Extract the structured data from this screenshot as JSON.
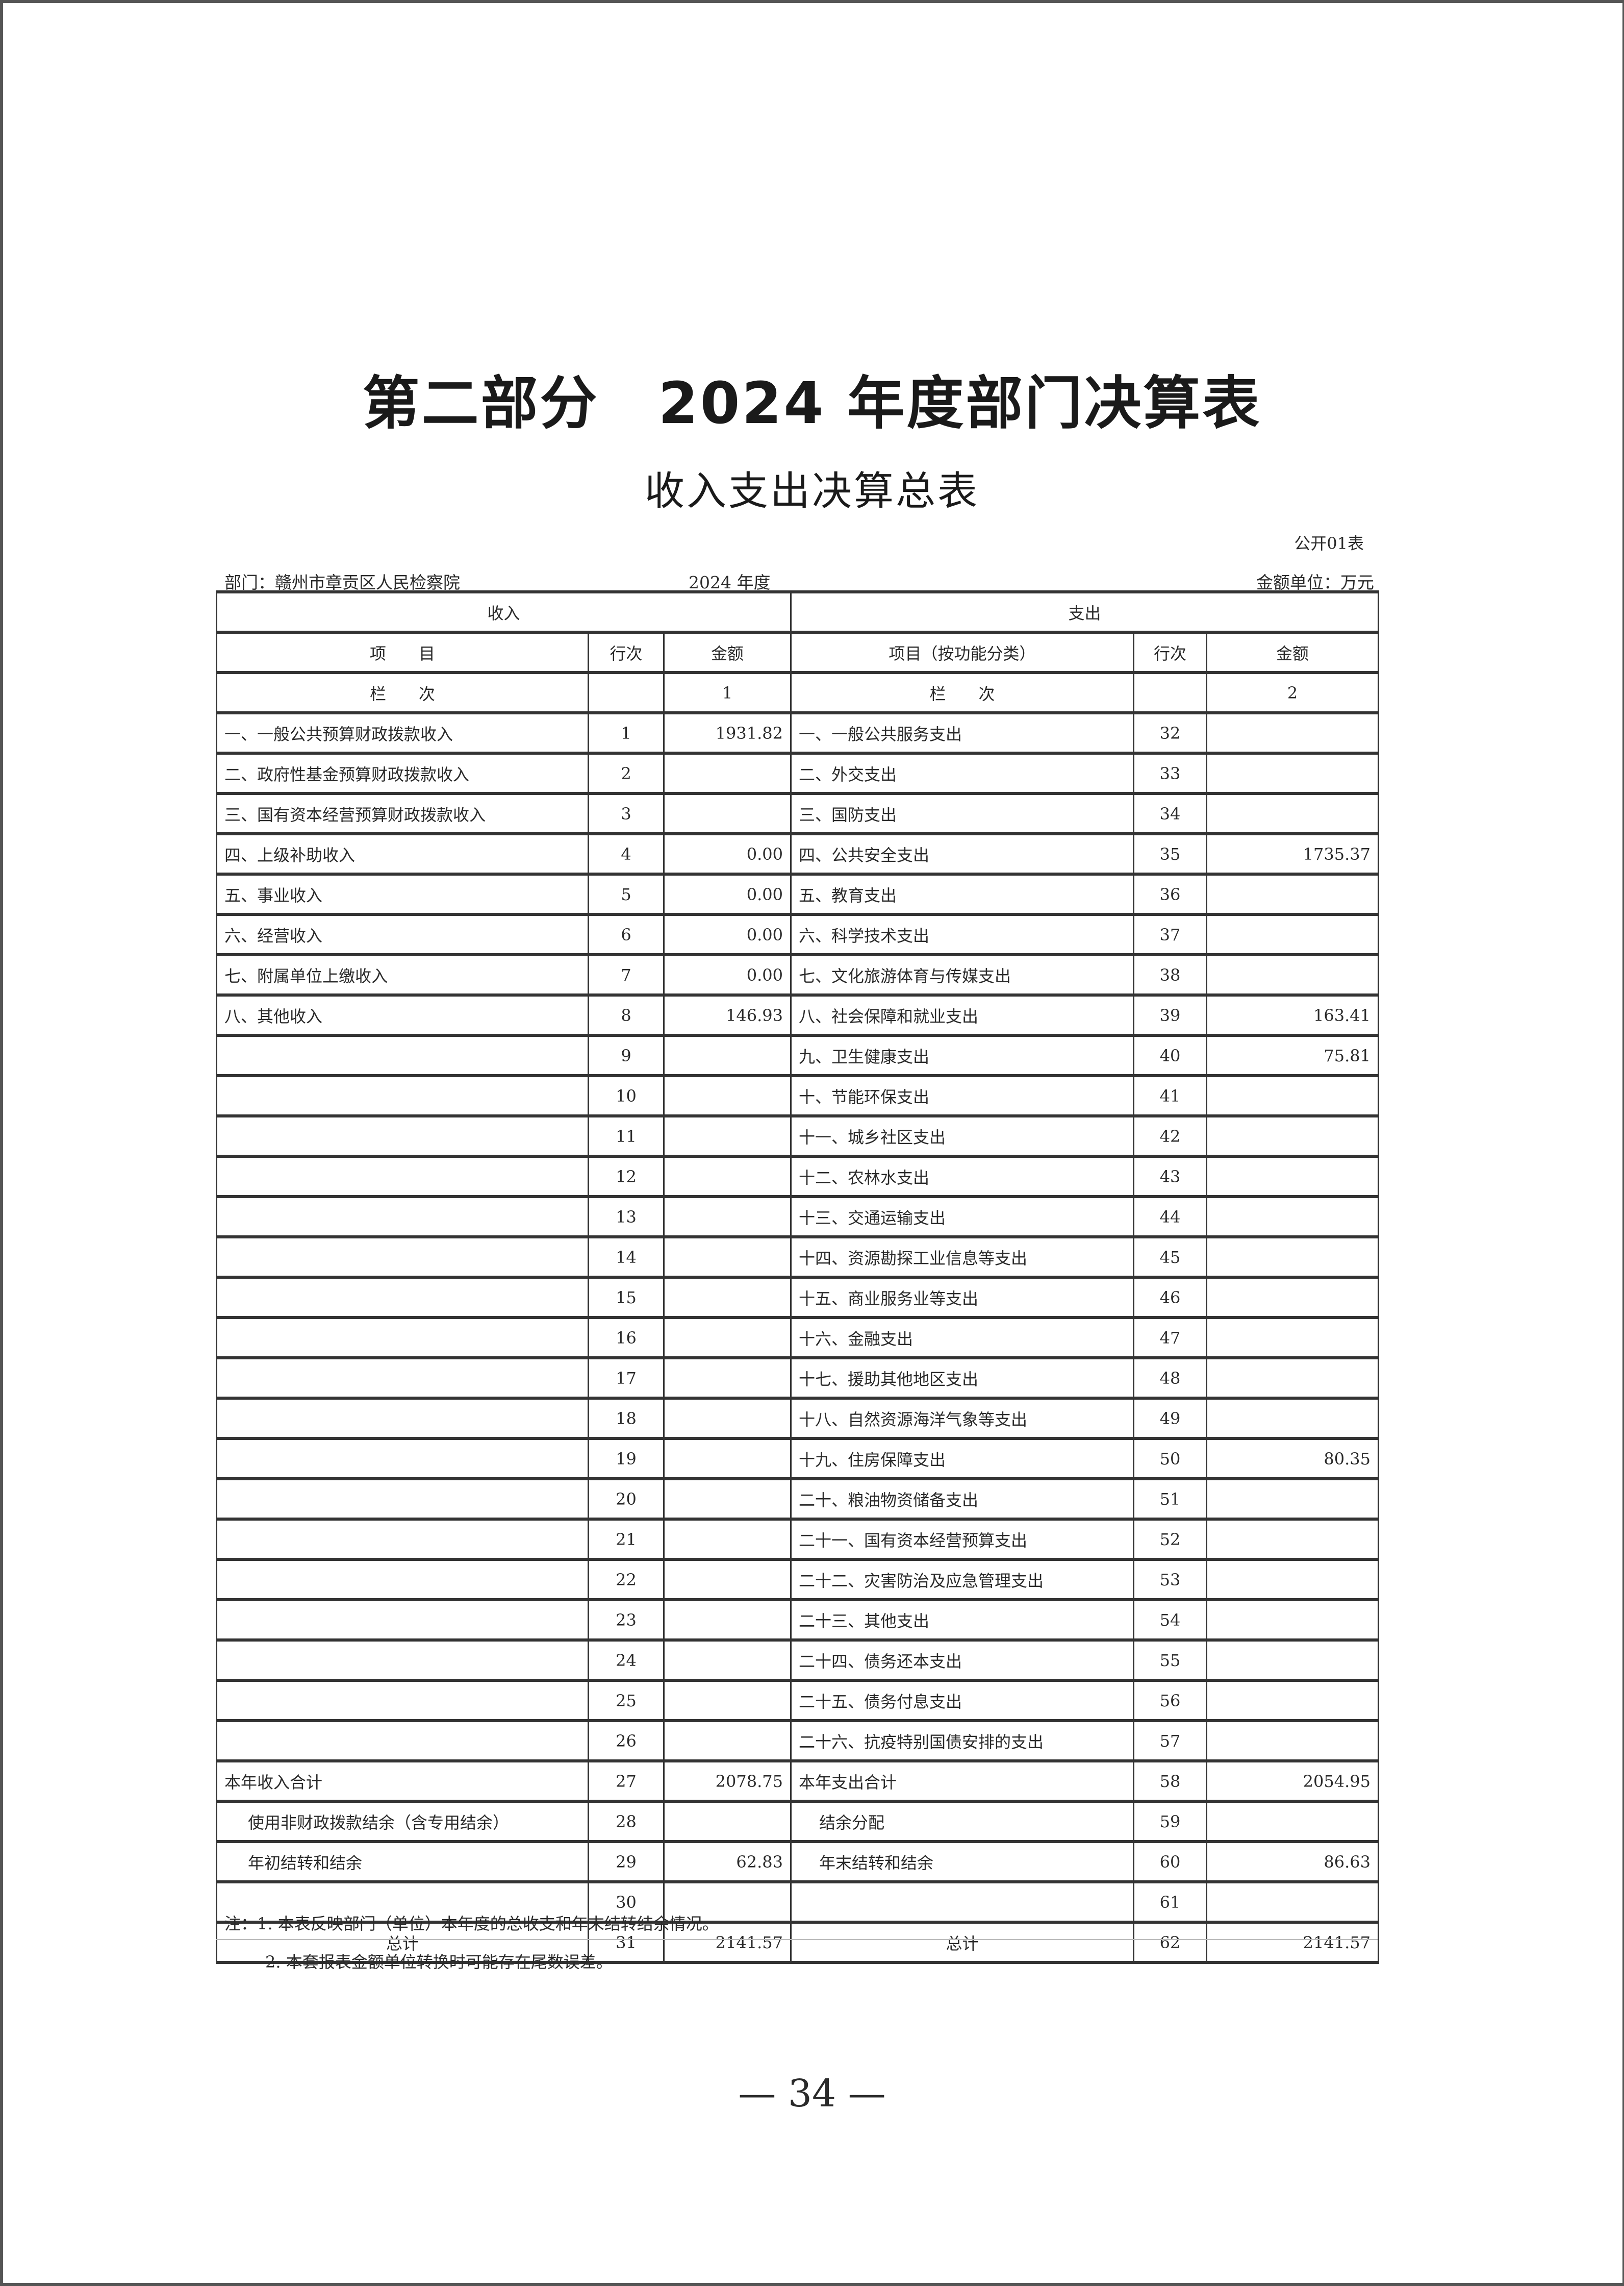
{
  "title": "第二部分　2024 年度部门决算表",
  "subtitle": "收入支出决算总表",
  "table_no": "公开01表",
  "department": "部门：赣州市章贡区人民检察院",
  "year": "2024 年度",
  "unit": "金额单位：万元",
  "table": {
    "income_header": "收入",
    "expense_header": "支出",
    "col_income_item": "项　　目",
    "col_line": "行次",
    "col_amount": "金额",
    "col_expense_item": "项目（按功能分类）",
    "col_order_label": "栏　　次",
    "col_income_order": "1",
    "col_expense_order": "2",
    "rows": [
      {
        "in_label": "一、一般公共预算财政拨款收入",
        "in_no": "1",
        "in_amt": "1931.82",
        "ex_label": "一、一般公共服务支出",
        "ex_no": "32",
        "ex_amt": ""
      },
      {
        "in_label": "二、政府性基金预算财政拨款收入",
        "in_no": "2",
        "in_amt": "",
        "ex_label": "二、外交支出",
        "ex_no": "33",
        "ex_amt": ""
      },
      {
        "in_label": "三、国有资本经营预算财政拨款收入",
        "in_no": "3",
        "in_amt": "",
        "ex_label": "三、国防支出",
        "ex_no": "34",
        "ex_amt": ""
      },
      {
        "in_label": "四、上级补助收入",
        "in_no": "4",
        "in_amt": "0.00",
        "ex_label": "四、公共安全支出",
        "ex_no": "35",
        "ex_amt": "1735.37"
      },
      {
        "in_label": "五、事业收入",
        "in_no": "5",
        "in_amt": "0.00",
        "ex_label": "五、教育支出",
        "ex_no": "36",
        "ex_amt": ""
      },
      {
        "in_label": "六、经营收入",
        "in_no": "6",
        "in_amt": "0.00",
        "ex_label": "六、科学技术支出",
        "ex_no": "37",
        "ex_amt": ""
      },
      {
        "in_label": "七、附属单位上缴收入",
        "in_no": "7",
        "in_amt": "0.00",
        "ex_label": "七、文化旅游体育与传媒支出",
        "ex_no": "38",
        "ex_amt": ""
      },
      {
        "in_label": "八、其他收入",
        "in_no": "8",
        "in_amt": "146.93",
        "ex_label": "八、社会保障和就业支出",
        "ex_no": "39",
        "ex_amt": "163.41"
      },
      {
        "in_label": "",
        "in_no": "9",
        "in_amt": "",
        "ex_label": "九、卫生健康支出",
        "ex_no": "40",
        "ex_amt": "75.81"
      },
      {
        "in_label": "",
        "in_no": "10",
        "in_amt": "",
        "ex_label": "十、节能环保支出",
        "ex_no": "41",
        "ex_amt": ""
      },
      {
        "in_label": "",
        "in_no": "11",
        "in_amt": "",
        "ex_label": "十一、城乡社区支出",
        "ex_no": "42",
        "ex_amt": ""
      },
      {
        "in_label": "",
        "in_no": "12",
        "in_amt": "",
        "ex_label": "十二、农林水支出",
        "ex_no": "43",
        "ex_amt": ""
      },
      {
        "in_label": "",
        "in_no": "13",
        "in_amt": "",
        "ex_label": "十三、交通运输支出",
        "ex_no": "44",
        "ex_amt": ""
      },
      {
        "in_label": "",
        "in_no": "14",
        "in_amt": "",
        "ex_label": "十四、资源勘探工业信息等支出",
        "ex_no": "45",
        "ex_amt": ""
      },
      {
        "in_label": "",
        "in_no": "15",
        "in_amt": "",
        "ex_label": "十五、商业服务业等支出",
        "ex_no": "46",
        "ex_amt": ""
      },
      {
        "in_label": "",
        "in_no": "16",
        "in_amt": "",
        "ex_label": "十六、金融支出",
        "ex_no": "47",
        "ex_amt": ""
      },
      {
        "in_label": "",
        "in_no": "17",
        "in_amt": "",
        "ex_label": "十七、援助其他地区支出",
        "ex_no": "48",
        "ex_amt": ""
      },
      {
        "in_label": "",
        "in_no": "18",
        "in_amt": "",
        "ex_label": "十八、自然资源海洋气象等支出",
        "ex_no": "49",
        "ex_amt": ""
      },
      {
        "in_label": "",
        "in_no": "19",
        "in_amt": "",
        "ex_label": "十九、住房保障支出",
        "ex_no": "50",
        "ex_amt": "80.35"
      },
      {
        "in_label": "",
        "in_no": "20",
        "in_amt": "",
        "ex_label": "二十、粮油物资储备支出",
        "ex_no": "51",
        "ex_amt": ""
      },
      {
        "in_label": "",
        "in_no": "21",
        "in_amt": "",
        "ex_label": "二十一、国有资本经营预算支出",
        "ex_no": "52",
        "ex_amt": ""
      },
      {
        "in_label": "",
        "in_no": "22",
        "in_amt": "",
        "ex_label": "二十二、灾害防治及应急管理支出",
        "ex_no": "53",
        "ex_amt": ""
      },
      {
        "in_label": "",
        "in_no": "23",
        "in_amt": "",
        "ex_label": "二十三、其他支出",
        "ex_no": "54",
        "ex_amt": ""
      },
      {
        "in_label": "",
        "in_no": "24",
        "in_amt": "",
        "ex_label": "二十四、债务还本支出",
        "ex_no": "55",
        "ex_amt": ""
      },
      {
        "in_label": "",
        "in_no": "25",
        "in_amt": "",
        "ex_label": "二十五、债务付息支出",
        "ex_no": "56",
        "ex_amt": ""
      },
      {
        "in_label": "",
        "in_no": "26",
        "in_amt": "",
        "ex_label": "二十六、抗疫特别国债安排的支出",
        "ex_no": "57",
        "ex_amt": ""
      },
      {
        "in_label": "本年收入合计",
        "in_no": "27",
        "in_amt": "2078.75",
        "ex_label": "本年支出合计",
        "ex_no": "58",
        "ex_amt": "2054.95"
      },
      {
        "in_label": "使用非财政拨款结余（含专用结余）",
        "in_no": "28",
        "in_amt": "",
        "ex_label": "结余分配",
        "ex_no": "59",
        "ex_amt": "",
        "indent": true
      },
      {
        "in_label": "年初结转和结余",
        "in_no": "29",
        "in_amt": "62.83",
        "ex_label": "年末结转和结余",
        "ex_no": "60",
        "ex_amt": "86.63",
        "indent": true
      },
      {
        "in_label": "",
        "in_no": "30",
        "in_amt": "",
        "ex_label": "",
        "ex_no": "61",
        "ex_amt": ""
      },
      {
        "in_label": "总计",
        "in_no": "31",
        "in_amt": "2141.57",
        "ex_label": "总计",
        "ex_no": "62",
        "ex_amt": "2141.57",
        "center": true
      }
    ]
  },
  "notes": [
    "注：1. 本表反映部门（单位）本年度的总收支和年末结转结余情况。",
    "2. 本套报表金额单位转换时可能存在尾数误差。"
  ],
  "page_number": "— 34 —"
}
